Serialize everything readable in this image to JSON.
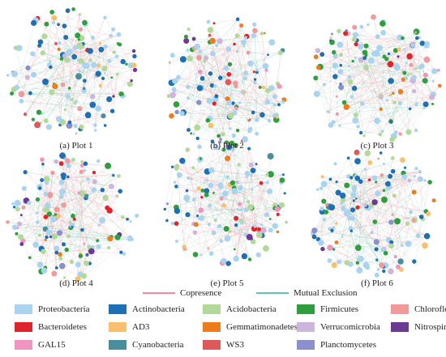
{
  "panels": [
    {
      "id": "p1",
      "caption": "(a) Plot 1"
    },
    {
      "id": "p2",
      "caption": "(b) Plot  2"
    },
    {
      "id": "p3",
      "caption": "(c) Plot  3"
    },
    {
      "id": "p4",
      "caption": "(d) Plot  4"
    },
    {
      "id": "p5",
      "caption": "(e) Plot  5"
    },
    {
      "id": "p6",
      "caption": "(f) Plot  6"
    }
  ],
  "edge_legend": {
    "copresence": {
      "label": "Copresence",
      "color": "#f08a9a"
    },
    "mutual_exclusion": {
      "label": "Mutual Exclusion",
      "color": "#5cc9a7"
    }
  },
  "taxa": [
    {
      "name": "Proteobacteria",
      "color": "#a9d3ee"
    },
    {
      "name": "Actinobacteria",
      "color": "#1f6fb4"
    },
    {
      "name": "Acidobacteria",
      "color": "#b2d89a"
    },
    {
      "name": "Firmicutes",
      "color": "#2e9e3e"
    },
    {
      "name": "Chloroflexi",
      "color": "#f29a9a"
    },
    {
      "name": "Bacteroidetes",
      "color": "#e0242b"
    },
    {
      "name": "AD3",
      "color": "#f9bf6c"
    },
    {
      "name": "Gemmatimonadetes",
      "color": "#ef7b1f"
    },
    {
      "name": "Verrucomicrobia",
      "color": "#cdb6dc"
    },
    {
      "name": "Nitrospirae",
      "color": "#6a3a94"
    },
    {
      "name": "GAL15",
      "color": "#ef95c0"
    },
    {
      "name": "Cyanobacteria",
      "color": "#4a8e9b"
    },
    {
      "name": "WS3",
      "color": "#e0595a"
    },
    {
      "name": "Planctomycetes",
      "color": "#8b8fcc"
    }
  ]
}
